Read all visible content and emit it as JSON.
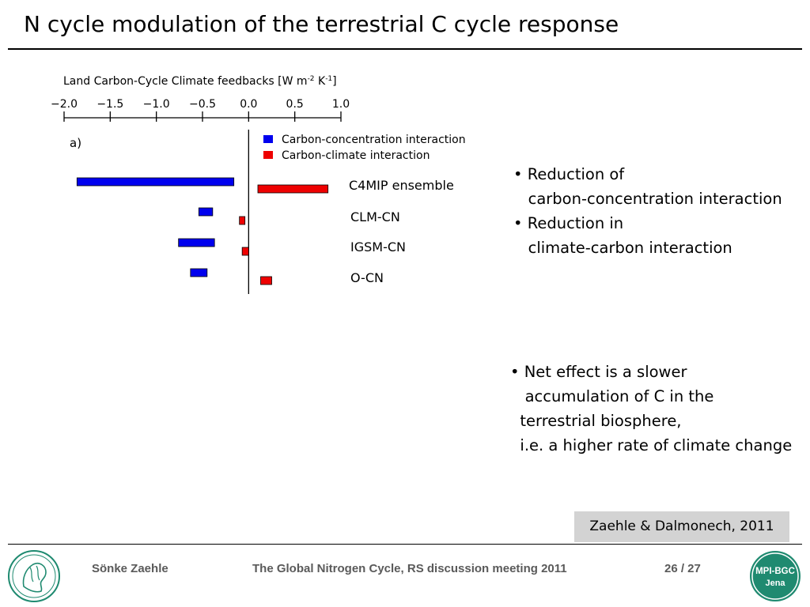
{
  "slide": {
    "title": "N cycle modulation of the terrestrial C cycle response"
  },
  "bullets_top": [
    "• Reduction of",
    "   carbon-concentration interaction",
    "• Reduction in",
    "   climate-carbon interaction"
  ],
  "bullets_bottom": [
    "• Net effect is a slower",
    "   accumulation of C in the",
    "  terrestrial biosphere,",
    "  i.e. a higher rate of climate change"
  ],
  "citation": "Zaehle & Dalmonech, 2011",
  "footer": {
    "author": "Sönke Zaehle",
    "meeting": "The Global Nitrogen Cycle, RS discussion meeting 2011",
    "pages": "26 / 27",
    "logo_right_text": [
      "MPI-BGC",
      "Jena"
    ]
  },
  "colors": {
    "blue": "#0000ee",
    "red": "#ee0000",
    "logo_green": "#1f8a70"
  },
  "chart_data": {
    "type": "bar",
    "orientation": "horizontal",
    "title": "Land Carbon-Cycle Climate feedbacks [W m-2 K-1]",
    "title_main": "Land Carbon-Cycle Climate feedbacks [W m",
    "title_sup1": "-2",
    "title_mid": " K",
    "title_sup2": "-1",
    "title_end": "]",
    "panel_label": "a)",
    "xlim": [
      -2.0,
      1.0
    ],
    "xticks": [
      -2.0,
      -1.5,
      -1.0,
      -0.5,
      0.0,
      0.5,
      1.0
    ],
    "xtick_labels": [
      "−2.0",
      "−1.5",
      "−1.0",
      "−0.5",
      "0.0",
      "0.5",
      "1.0"
    ],
    "legend_position": "top-right",
    "categories": [
      "C4MIP ensemble",
      "CLM-CN",
      "IGSM-CN",
      "O-CN"
    ],
    "series": [
      {
        "name": "Carbon-concentration interaction",
        "color": "#0000ee",
        "ranges": [
          [
            -1.86,
            -0.16
          ],
          [
            -0.54,
            -0.39
          ],
          [
            -0.76,
            -0.37
          ],
          [
            -0.63,
            -0.45
          ]
        ]
      },
      {
        "name": "Carbon-climate interaction",
        "color": "#ee0000",
        "ranges": [
          [
            0.1,
            0.86
          ],
          [
            -0.1,
            -0.04
          ],
          [
            -0.07,
            0.0
          ],
          [
            0.13,
            0.25
          ]
        ]
      }
    ]
  }
}
